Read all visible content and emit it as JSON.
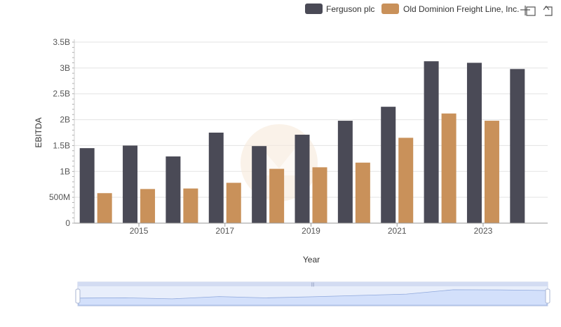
{
  "chart_data": {
    "type": "bar",
    "title": "",
    "xlabel": "Year",
    "ylabel": "EBITDA",
    "ylim": [
      0,
      3500000000
    ],
    "yticks": [
      {
        "value": 0,
        "label": "0"
      },
      {
        "value": 500000000,
        "label": "500M"
      },
      {
        "value": 1000000000,
        "label": "1B"
      },
      {
        "value": 1500000000,
        "label": "1.5B"
      },
      {
        "value": 2000000000,
        "label": "2B"
      },
      {
        "value": 2500000000,
        "label": "2.5B"
      },
      {
        "value": 3000000000,
        "label": "3B"
      },
      {
        "value": 3500000000,
        "label": "3.5B"
      }
    ],
    "categories": [
      "2014",
      "2015",
      "2016",
      "2017",
      "2018",
      "2019",
      "2020",
      "2021",
      "2022",
      "2023",
      "2024"
    ],
    "xtick_labels": [
      "2015",
      "2017",
      "2019",
      "2021",
      "2023"
    ],
    "grid": true,
    "legend_position": "top-right",
    "series": [
      {
        "name": "Ferguson plc",
        "color": "#4a4a56",
        "values": [
          1450000000,
          1500000000,
          1290000000,
          1750000000,
          1490000000,
          1710000000,
          1980000000,
          2250000000,
          3130000000,
          3100000000,
          2980000000
        ]
      },
      {
        "name": "Old Dominion Freight Line, Inc.",
        "color": "#c9915a",
        "values": [
          580000000,
          660000000,
          670000000,
          780000000,
          1050000000,
          1080000000,
          1170000000,
          1650000000,
          2120000000,
          1980000000,
          null
        ]
      }
    ]
  },
  "legend": {
    "items": [
      {
        "label": "Ferguson plc",
        "color": "#4a4a56"
      },
      {
        "label": "Old Dominion Freight Line, Inc.",
        "color": "#c9915a"
      }
    ]
  },
  "toolbar": {
    "zoom_icon": "zoom-crosshair-icon",
    "reset_icon": "reset-arrow-icon"
  },
  "slider": {
    "fill_color": "#d7e3fc",
    "border_color": "#b8c6e8"
  }
}
